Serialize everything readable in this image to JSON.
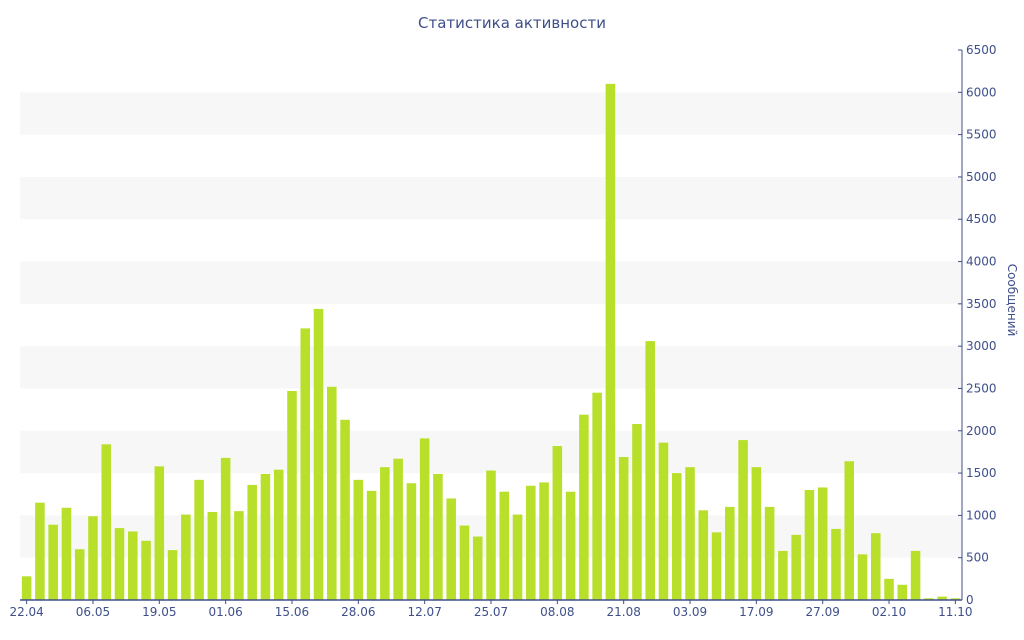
{
  "chart_data": {
    "type": "bar",
    "title": "Статистика активности",
    "xlabel": "",
    "ylabel": "Сообщений",
    "ylim": [
      0,
      6500
    ],
    "ytick_step": 500,
    "grid": "alternating horizontal bands",
    "colors": {
      "bar": "#b8e02a",
      "band": "#f7f7f7",
      "axis": "#3e4f8a",
      "text": "#3e4f8a"
    },
    "x_tick_labels": [
      {
        "index": 0,
        "label": "22.04"
      },
      {
        "index": 5,
        "label": "06.05"
      },
      {
        "index": 10,
        "label": "19.05"
      },
      {
        "index": 15,
        "label": "01.06"
      },
      {
        "index": 20,
        "label": "15.06"
      },
      {
        "index": 25,
        "label": "28.06"
      },
      {
        "index": 30,
        "label": "12.07"
      },
      {
        "index": 35,
        "label": "25.07"
      },
      {
        "index": 40,
        "label": "08.08"
      },
      {
        "index": 45,
        "label": "21.08"
      },
      {
        "index": 50,
        "label": "03.09"
      },
      {
        "index": 55,
        "label": "17.09"
      },
      {
        "index": 60,
        "label": "27.09"
      },
      {
        "index": 65,
        "label": "02.10"
      },
      {
        "index": 70,
        "label": "11.10"
      }
    ],
    "values": [
      280,
      1150,
      890,
      1090,
      600,
      990,
      1840,
      850,
      810,
      700,
      1580,
      590,
      1010,
      1420,
      1040,
      1680,
      1050,
      1360,
      1490,
      1540,
      2470,
      3210,
      3440,
      2520,
      2130,
      1420,
      1290,
      1570,
      1670,
      1380,
      1910,
      1490,
      1200,
      880,
      750,
      1530,
      1280,
      1010,
      1350,
      1390,
      1820,
      1280,
      2190,
      2450,
      6100,
      1690,
      2080,
      3060,
      1860,
      1500,
      1570,
      1060,
      800,
      1100,
      1890,
      1570,
      1100,
      580,
      770,
      1300,
      1330,
      840,
      1640,
      540,
      790,
      250,
      180,
      580,
      20,
      40,
      20
    ]
  }
}
